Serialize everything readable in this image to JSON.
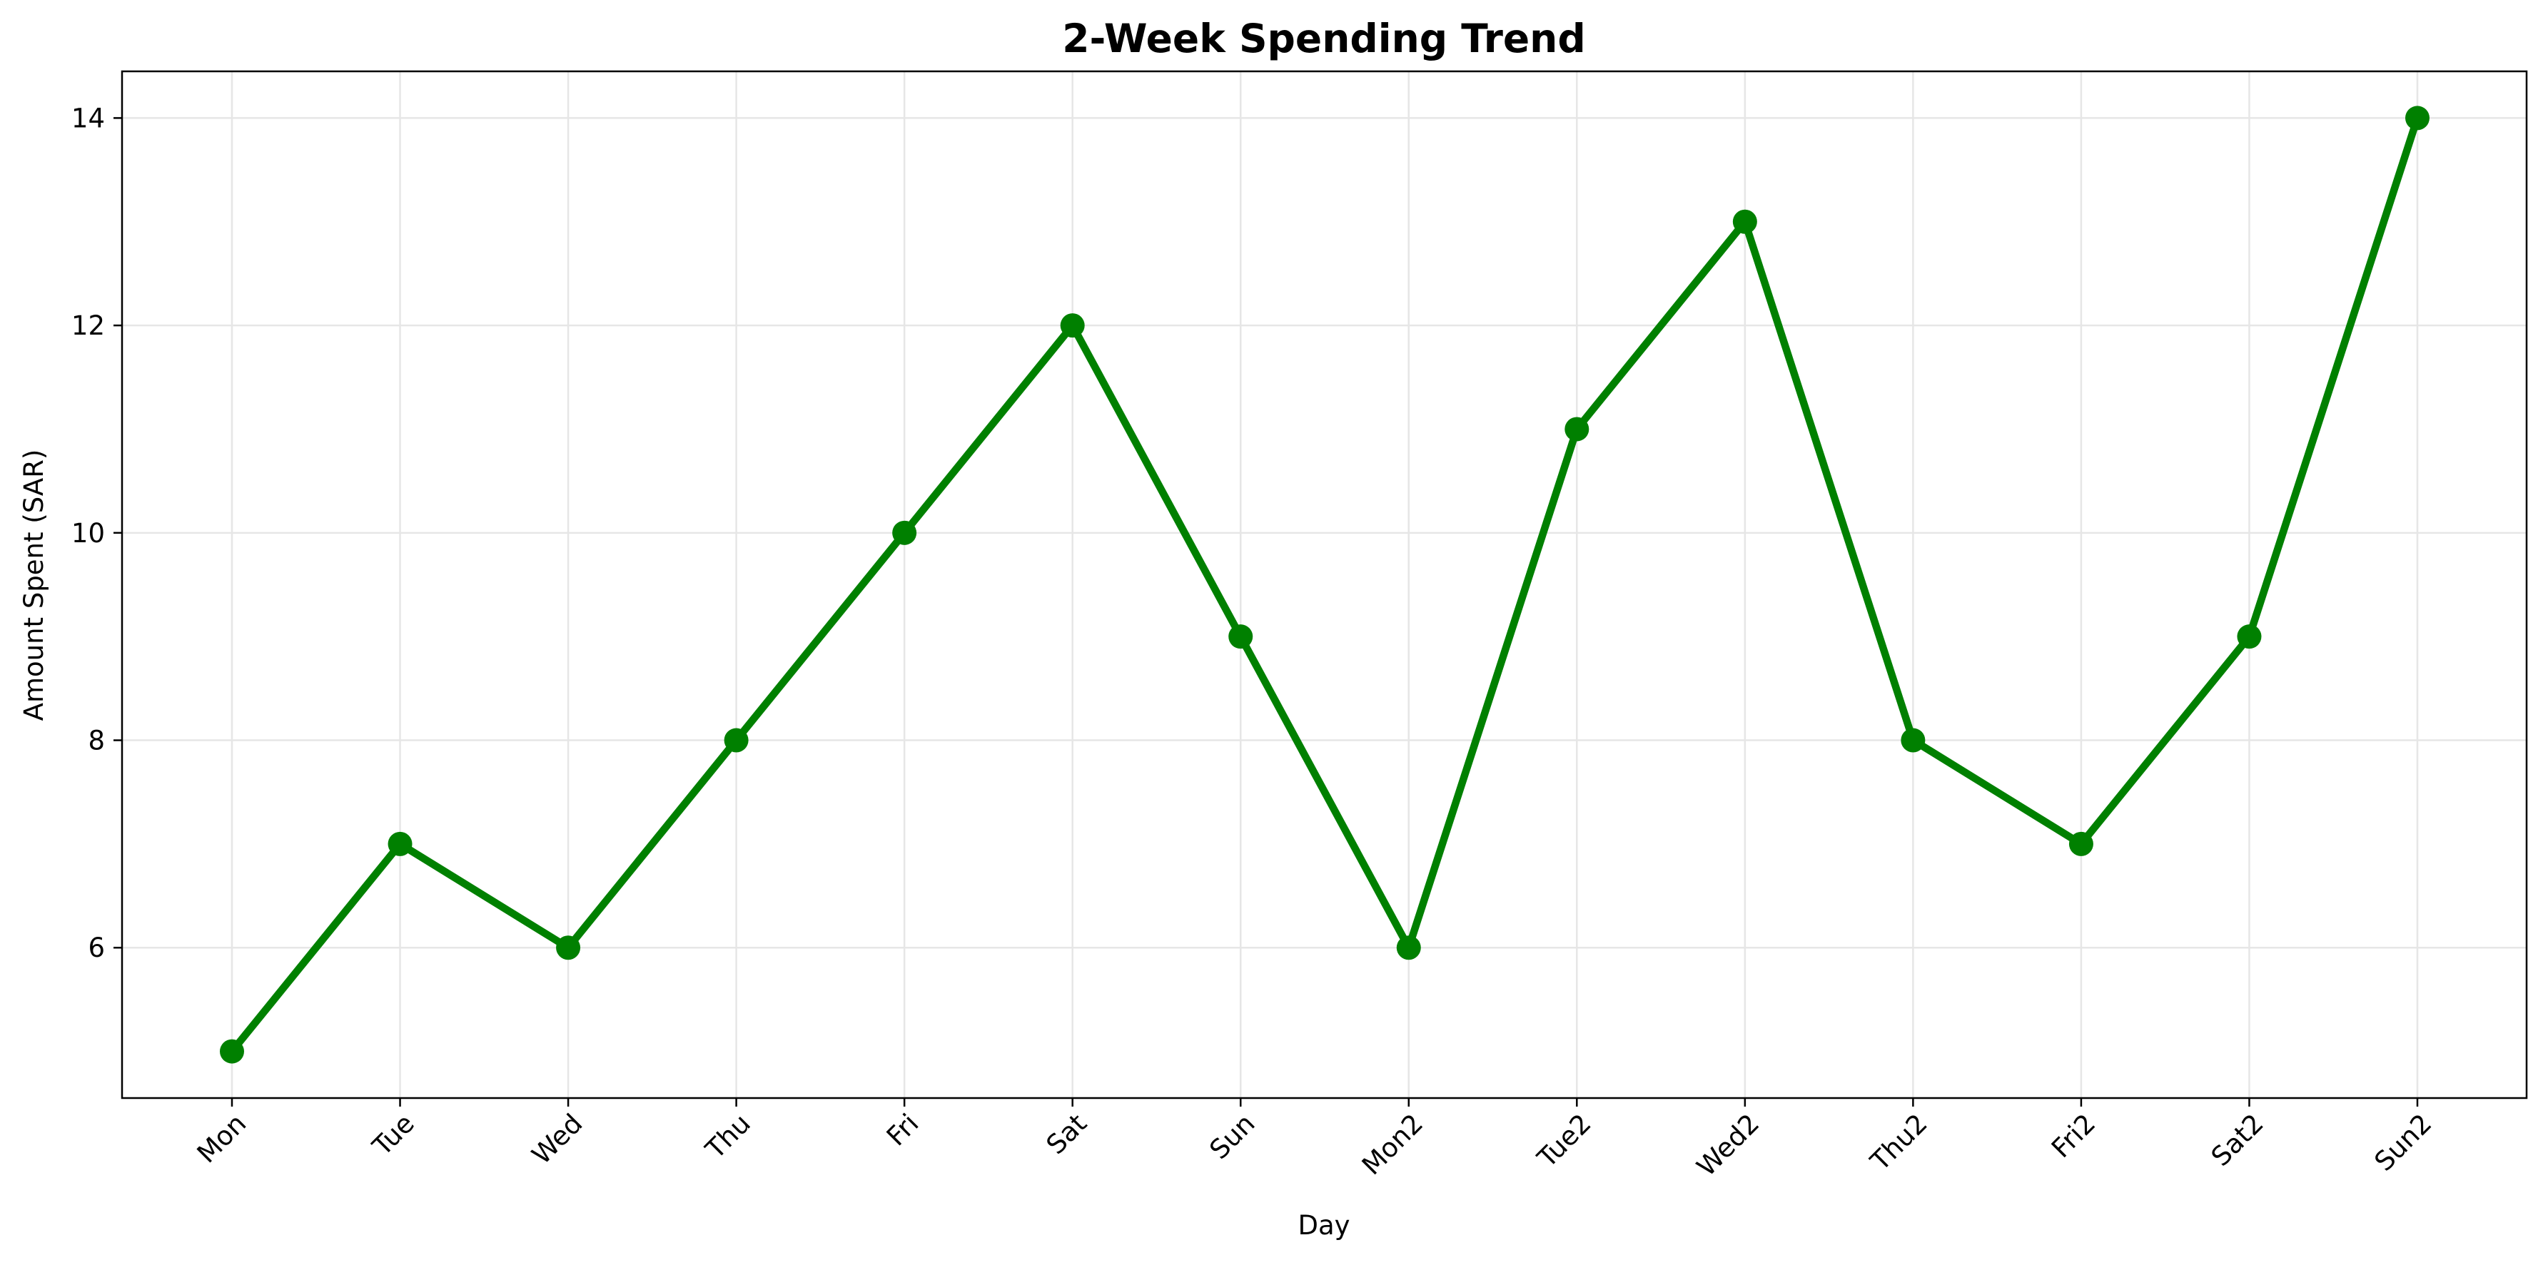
{
  "chart_data": {
    "type": "line",
    "title": "2-Week Spending Trend",
    "xlabel": "Day",
    "ylabel": "Amount Spent (SAR)",
    "categories": [
      "Mon",
      "Tue",
      "Wed",
      "Thu",
      "Fri",
      "Sat",
      "Sun",
      "Mon2",
      "Tue2",
      "Wed2",
      "Thu2",
      "Fri2",
      "Sat2",
      "Sun2"
    ],
    "series": [
      {
        "values": [
          5,
          7,
          6,
          8,
          10,
          12,
          9,
          6,
          11,
          13,
          8,
          7,
          9,
          14
        ],
        "color": "#008000",
        "marker": "circle"
      }
    ],
    "ylim": [
      4.55,
      14.45
    ],
    "yticks": [
      6,
      8,
      10,
      12,
      14
    ],
    "grid": true,
    "legend": "none",
    "colors": {
      "line": "#008000",
      "grid": "#e6e6e6",
      "axes": "#000000"
    }
  }
}
